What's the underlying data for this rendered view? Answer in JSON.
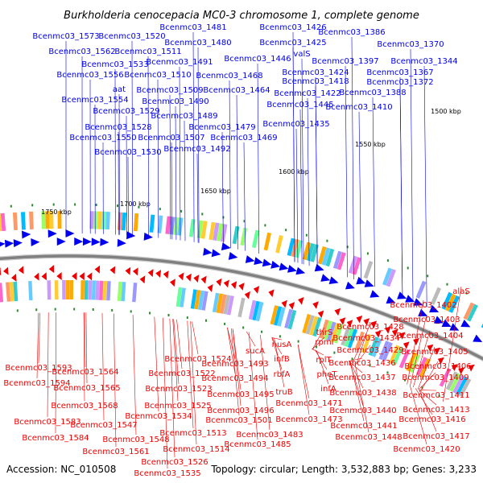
{
  "title": "Burkholderia cenocepacia MC0-3 chromosome 1, complete genome",
  "footer": {
    "accession": "Accession: NC_010508",
    "summary": "Topology: circular; Length: 3,532,883 bp; Genes: 3,233"
  },
  "colors": {
    "forward_strand": "#0000ee",
    "reverse_strand": "#ee0000",
    "backbone": "#808080",
    "tick": "#2a8a2a"
  },
  "scale_labels": [
    "1500 kbp",
    "1550 kbp",
    "1600 kbp",
    "1650 kbp",
    "1700 kbp",
    "1750 kbp"
  ],
  "top_labels": [
    "Bcenmc03_1481",
    "Bcenmc03_1426",
    "Bcenmc03_1573",
    "Bcenmc03_1520",
    "Bcenmc03_1386",
    "Bcenmc03_1480",
    "Bcenmc03_1425",
    "Bcenmc03_1370",
    "Bcenmc03_1562",
    "Bcenmc03_1511",
    "valS",
    "Bcenmc03_1533",
    "Bcenmc03_1491",
    "Bcenmc03_1446",
    "Bcenmc03_1397",
    "Bcenmc03_1344",
    "Bcenmc03_1424",
    "Bcenmc03_1367",
    "Bcenmc03_1556",
    "Bcenmc03_1510",
    "Bcenmc03_1468",
    "Bcenmc03_1418",
    "Bcenmc03_1372",
    "aat",
    "Bcenmc03_1509",
    "Bcenmc03_1464",
    "Bcenmc03_1422",
    "Bcenmc03_1388",
    "Bcenmc03_1554",
    "Bcenmc03_1490",
    "Bcenmc03_1445",
    "Bcenmc03_1410",
    "Bcenmc03_1529",
    "Bcenmc03_1489",
    "Bcenmc03_1435",
    "Bcenmc03_1528",
    "Bcenmc03_1479",
    "Bcenmc03_1550",
    "Bcenmc03_1507",
    "Bcenmc03_1469",
    "Bcenmc03_1530",
    "Bcenmc03_1492"
  ],
  "bottom_labels": [
    "alaS",
    "Bcenmc03_1402",
    "Bcenmc03_1428",
    "Bcenmc03_1403",
    "thrS",
    "Bcenmc03_1434",
    "Bcenmc03_1404",
    "rpmI",
    "sucA",
    "nusA",
    "Bcenmc03_1429",
    "Bcenmc03_1405",
    "Bcenmc03_1524",
    "infB",
    "rplT",
    "Bcenmc03_1436",
    "Bcenmc03_1406",
    "Bcenmc03_1593",
    "Bcenmc03_1564",
    "Bcenmc03_1522",
    "Bcenmc03_1493",
    "Bcenmc03_1494",
    "rbfA",
    "pheT",
    "Bcenmc03_1437",
    "Bcenmc03_1409",
    "Bcenmc03_1594",
    "Bcenmc03_1565",
    "Bcenmc03_1523",
    "infA",
    "Bcenmc03_1438",
    "Bcenmc03_1411",
    "Bcenmc03_1495",
    "truB",
    "Bcenmc03_1568",
    "Bcenmc03_1525",
    "Bcenmc03_1471",
    "Bcenmc03_1440",
    "Bcenmc03_1413",
    "Bcenmc03_1534",
    "Bcenmc03_1496",
    "Bcenmc03_1583",
    "Bcenmc03_1547",
    "Bcenmc03_1501",
    "Bcenmc03_1473",
    "Bcenmc03_1441",
    "Bcenmc03_1416",
    "Bcenmc03_1513",
    "Bcenmc03_1483",
    "Bcenmc03_1584",
    "Bcenmc03_1548",
    "Bcenmc03_1485",
    "Bcenmc03_1448",
    "Bcenmc03_1417",
    "Bcenmc03_1561",
    "Bcenmc03_1514",
    "Bcenmc03_1420",
    "Bcenmc03_1526",
    "Bcenmc03_1535"
  ]
}
